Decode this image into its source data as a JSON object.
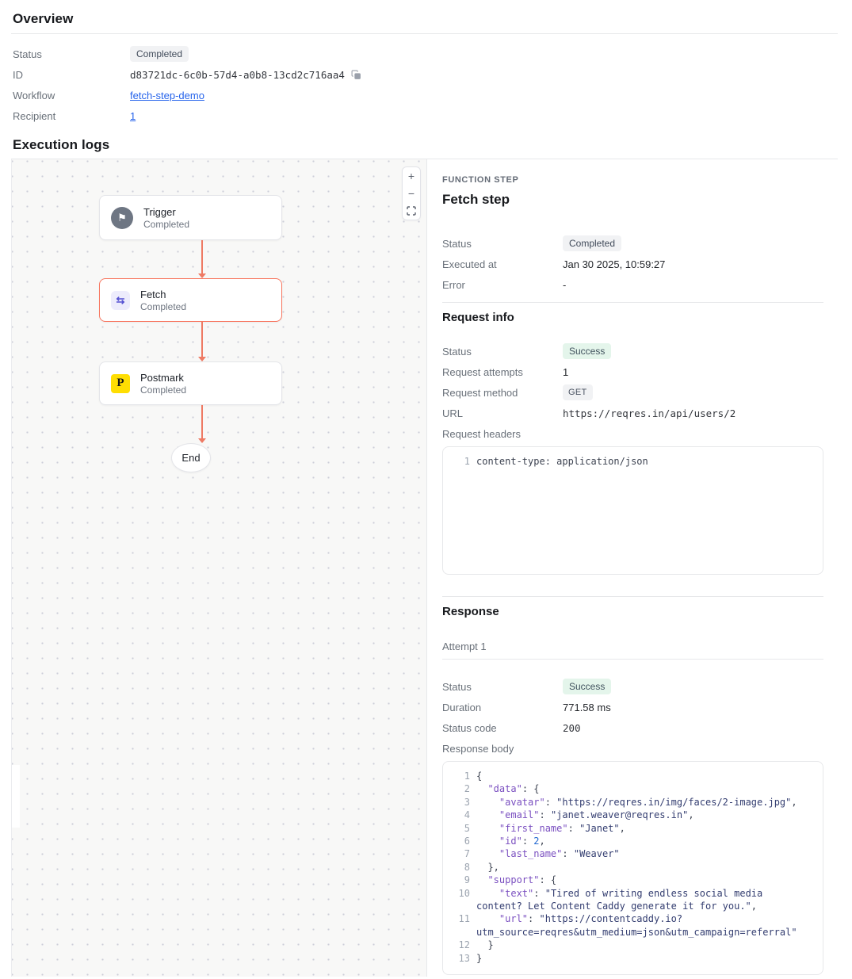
{
  "overview": {
    "title": "Overview",
    "status_label": "Status",
    "status_value": "Completed",
    "id_label": "ID",
    "id_value": "d83721dc-6c0b-57d4-a0b8-13cd2c716aa4",
    "workflow_label": "Workflow",
    "workflow_value": "fetch-step-demo",
    "recipient_label": "Recipient",
    "recipient_value": "1"
  },
  "execution_logs": {
    "title": "Execution logs",
    "canvas": {
      "nodes": {
        "trigger": {
          "title": "Trigger",
          "status": "Completed"
        },
        "fetch": {
          "title": "Fetch",
          "status": "Completed"
        },
        "postmark": {
          "title": "Postmark",
          "status": "Completed"
        },
        "end": {
          "label": "End"
        }
      }
    },
    "details": {
      "eyebrow": "FUNCTION STEP",
      "title": "Fetch step",
      "status_label": "Status",
      "status_value": "Completed",
      "executed_label": "Executed at",
      "executed_value": "Jan 30 2025, 10:59:27",
      "error_label": "Error",
      "error_value": "-",
      "request_info": {
        "title": "Request info",
        "status_label": "Status",
        "status_value": "Success",
        "attempts_label": "Request attempts",
        "attempts_value": "1",
        "method_label": "Request method",
        "method_value": "GET",
        "url_label": "URL",
        "url_value": "https://reqres.in/api/users/2",
        "headers_label": "Request headers",
        "headers_code": [
          "content-type: application/json"
        ]
      },
      "response": {
        "title": "Response",
        "attempt_label": "Attempt 1",
        "status_label": "Status",
        "status_value": "Success",
        "duration_label": "Duration",
        "duration_value": "771.58 ms",
        "status_code_label": "Status code",
        "status_code_value": "200",
        "body_label": "Response body",
        "body_code": [
          "{",
          "  \"data\": {",
          "    \"avatar\": \"https://reqres.in/img/faces/2-image.jpg\",",
          "    \"email\": \"janet.weaver@reqres.in\",",
          "    \"first_name\": \"Janet\",",
          "    \"id\": 2,",
          "    \"last_name\": \"Weaver\"",
          "  },",
          "  \"support\": {",
          "    \"text\": \"Tired of writing endless social media content? Let Content Caddy generate it for you.\",",
          "    \"url\": \"https://contentcaddy.io?utm_source=reqres&utm_medium=json&utm_campaign=referral\"",
          "  }",
          "}"
        ]
      }
    }
  },
  "icons": {
    "zoom_in": "+",
    "zoom_out": "−",
    "trigger_flag": "⚑",
    "fetch_swap": "⇆",
    "postmark_logo": "P"
  },
  "colors": {
    "accent_link": "#2563eb",
    "badge_neutral_bg": "#f1f2f4",
    "badge_neutral_text": "#414b5a",
    "badge_success_bg": "#e4f5eb",
    "badge_success_text": "#41525e",
    "selected_node_border": "#f8765f",
    "edge": "#ee7a64",
    "postmark_yellow": "#ffde02",
    "code_key": "#7a4fc0",
    "code_string": "#333d70",
    "code_number": "#2168d1"
  }
}
